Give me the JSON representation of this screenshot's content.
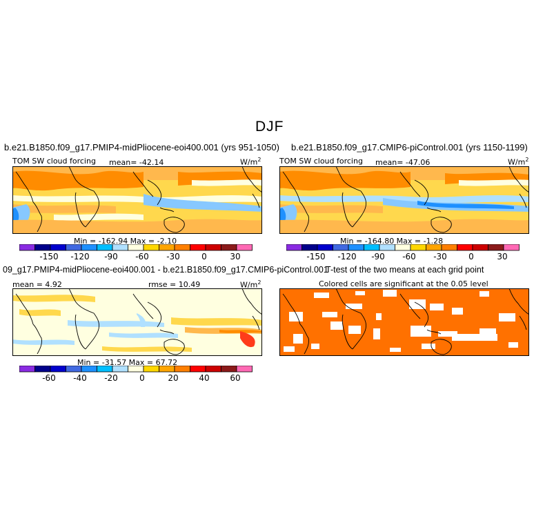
{
  "season": "DJF",
  "panels": {
    "top_left": {
      "title": "b.e21.B1850.f09_g17.PMIP4-midPliocene-eoi400.001 (yrs 951-1050)",
      "variable": "TOM SW cloud forcing",
      "mean_label": "mean= -42.14",
      "units": "W/m",
      "units_exp": "2",
      "minmax": "Min = -162.94  Max =  -2.10"
    },
    "top_right": {
      "title": "b.e21.B1850.f09_g17.CMIP6-piControl.001 (yrs 1150-1199)",
      "variable": "TOM SW cloud forcing",
      "mean_label": "mean= -47.06",
      "units": "W/m",
      "units_exp": "2",
      "minmax": "Min = -164.80  Max =  -1.28"
    },
    "bottom_left": {
      "title": "09_g17.PMIP4-midPliocene-eoi400.001 - b.e21.B1850.f09_g17.CMIP6-piControl.001",
      "mean_label": "mean =  4.92",
      "rmse_label": "rmse =  10.49",
      "units": "W/m",
      "units_exp": "2",
      "minmax": "Min = -31.57  Max =  67.72"
    },
    "bottom_right": {
      "title": "T-test of the two means at each grid point",
      "subtitle": "Colored cells are significant at the 0.05 level"
    }
  },
  "colorbars": {
    "abs": {
      "colors": [
        "#8a2be2",
        "#00008b",
        "#0000cd",
        "#4169e1",
        "#1e90ff",
        "#00bfff",
        "#b0e0ff",
        "#ffffe0",
        "#ffd700",
        "#ffa500",
        "#ff7f00",
        "#ff0000",
        "#cd0000",
        "#8b1a1a",
        "#ff69b4"
      ],
      "ticks": [
        "-150",
        "-120",
        "-90",
        "-60",
        "-30",
        "0",
        "30"
      ]
    },
    "diff": {
      "colors": [
        "#8a2be2",
        "#00008b",
        "#0000cd",
        "#4169e1",
        "#1e90ff",
        "#00bfff",
        "#b0e0ff",
        "#ffffe0",
        "#ffd700",
        "#ffa500",
        "#ff7f00",
        "#ff0000",
        "#cd0000",
        "#8b1a1a",
        "#ff69b4"
      ],
      "ticks": [
        "-60",
        "-40",
        "-20",
        "0",
        "20",
        "40",
        "60"
      ]
    }
  },
  "map_colors": {
    "strong_neg": "#ff8c00",
    "neg": "#ffb84d",
    "mid": "#ffd84d",
    "light": "#ffffe0",
    "cloud_blue": "#87c8ff",
    "deep_blue": "#1e90ff",
    "significant": "#ff7100"
  }
}
